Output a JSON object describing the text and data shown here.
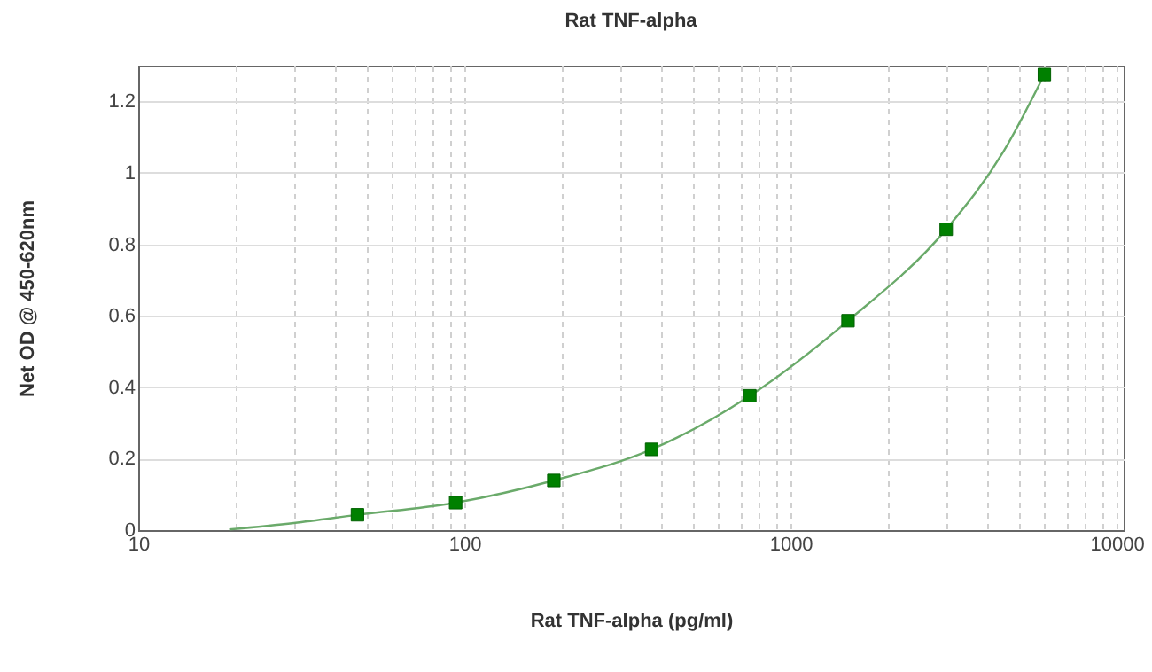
{
  "chart_data": {
    "type": "scatter",
    "title": "Rat TNF-alpha",
    "xlabel": "Rat TNF-alpha (pg/ml)",
    "ylabel": "Net OD @ 450-620nm",
    "log": "x",
    "grid": true,
    "legend": false,
    "xlim": [
      10,
      10500
    ],
    "ylim": [
      0,
      1.3
    ],
    "xticks": [
      10,
      {
        "value": 20,
        "label": null
      },
      {
        "value": 30,
        "label": null
      },
      {
        "value": 40,
        "label": null
      },
      {
        "value": 50,
        "label": null
      },
      {
        "value": 60,
        "label": null
      },
      {
        "value": 70,
        "label": null
      },
      {
        "value": 80,
        "label": null
      },
      {
        "value": 90,
        "label": null
      },
      100,
      {
        "value": 200,
        "label": null
      },
      {
        "value": 300,
        "label": null
      },
      {
        "value": 400,
        "label": null
      },
      {
        "value": 500,
        "label": null
      },
      {
        "value": 600,
        "label": null
      },
      {
        "value": 700,
        "label": null
      },
      {
        "value": 800,
        "label": null
      },
      {
        "value": 900,
        "label": null
      },
      1000,
      {
        "value": 2000,
        "label": null
      },
      {
        "value": 3000,
        "label": null
      },
      {
        "value": 4000,
        "label": null
      },
      {
        "value": 5000,
        "label": null
      },
      {
        "value": 6000,
        "label": null
      },
      {
        "value": 7000,
        "label": null
      },
      {
        "value": 8000,
        "label": null
      },
      {
        "value": 9000,
        "label": null
      },
      10000
    ],
    "yticks": [
      0,
      0.2,
      0.4,
      0.6,
      0.8,
      1,
      1.2
    ],
    "series": [
      {
        "type": "line",
        "color": "#6aaa6a",
        "line_style": "solid",
        "marker": "none",
        "x": [
          19,
          30,
          47,
          94,
          188,
          375,
          750,
          1500,
          3000,
          4500,
          6000
        ],
        "values": [
          0.002,
          0.02,
          0.043,
          0.077,
          0.139,
          0.226,
          0.376,
          0.586,
          0.842,
          1.06,
          1.275
        ]
      },
      {
        "color": "#008000",
        "marker": "square",
        "x": [
          47,
          94,
          188,
          375,
          750,
          1500,
          3000,
          6000
        ],
        "values": [
          0.043,
          0.077,
          0.139,
          0.226,
          0.376,
          0.586,
          0.842,
          1.275
        ]
      }
    ]
  }
}
